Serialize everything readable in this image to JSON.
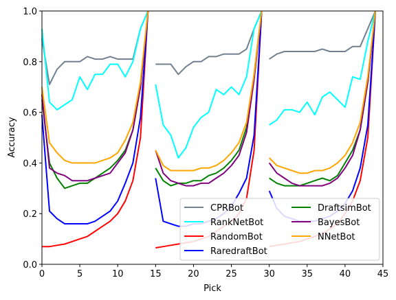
{
  "chart_data": {
    "type": "line",
    "title": "",
    "xlabel": "Pick",
    "ylabel": "Accuracy",
    "xlim": [
      0,
      45
    ],
    "ylim": [
      0.0,
      1.0
    ],
    "grid": false,
    "legend_position": "lower-right",
    "legend_columns": 2,
    "x_ticks": [
      0,
      5,
      10,
      15,
      20,
      25,
      30,
      35,
      40,
      45
    ],
    "y_ticks": [
      0.0,
      0.2,
      0.4,
      0.6,
      0.8,
      1.0
    ],
    "x_tick_labels": [
      "0",
      "5",
      "10",
      "15",
      "20",
      "25",
      "30",
      "35",
      "40",
      "45"
    ],
    "y_tick_labels": [
      "0.0",
      "0.2",
      "0.4",
      "0.6",
      "0.8",
      "1.0"
    ],
    "segments": [
      [
        0,
        14
      ],
      [
        15,
        29
      ],
      [
        30,
        44
      ]
    ],
    "series": [
      {
        "name": "CPRBot",
        "color": "#708090",
        "values": [
          0.89,
          0.71,
          0.77,
          0.8,
          0.8,
          0.8,
          0.82,
          0.81,
          0.81,
          0.82,
          0.81,
          0.81,
          0.81,
          0.93,
          1.0,
          0.79,
          0.79,
          0.79,
          0.75,
          0.78,
          0.8,
          0.8,
          0.82,
          0.82,
          0.83,
          0.83,
          0.83,
          0.85,
          0.93,
          1.0,
          0.81,
          0.83,
          0.84,
          0.84,
          0.84,
          0.84,
          0.84,
          0.85,
          0.84,
          0.84,
          0.84,
          0.86,
          0.86,
          0.93,
          1.0
        ]
      },
      {
        "name": "RankNetBot",
        "color": "#00ffff",
        "values": [
          0.93,
          0.64,
          0.61,
          0.63,
          0.65,
          0.74,
          0.69,
          0.75,
          0.75,
          0.79,
          0.79,
          0.74,
          0.8,
          0.93,
          1.0,
          0.71,
          0.55,
          0.51,
          0.42,
          0.46,
          0.54,
          0.58,
          0.6,
          0.69,
          0.67,
          0.7,
          0.67,
          0.74,
          0.93,
          1.0,
          0.55,
          0.57,
          0.61,
          0.61,
          0.6,
          0.64,
          0.59,
          0.66,
          0.68,
          0.65,
          0.62,
          0.74,
          0.73,
          0.88,
          1.0
        ]
      },
      {
        "name": "RandomBot",
        "color": "#ff0000",
        "values": [
          0.07,
          0.07,
          0.075,
          0.08,
          0.09,
          0.1,
          0.11,
          0.13,
          0.15,
          0.17,
          0.2,
          0.25,
          0.33,
          0.5,
          1.0,
          0.065,
          0.07,
          0.075,
          0.08,
          0.085,
          0.09,
          0.1,
          0.11,
          0.13,
          0.15,
          0.17,
          0.2,
          0.26,
          0.45,
          1.0,
          0.07,
          0.075,
          0.08,
          0.085,
          0.09,
          0.1,
          0.11,
          0.12,
          0.14,
          0.16,
          0.2,
          0.25,
          0.33,
          0.5,
          1.0
        ]
      },
      {
        "name": "RaredraftBot",
        "color": "#0000ff",
        "values": [
          0.59,
          0.21,
          0.18,
          0.16,
          0.16,
          0.16,
          0.16,
          0.17,
          0.19,
          0.21,
          0.25,
          0.32,
          0.4,
          0.58,
          1.0,
          0.34,
          0.17,
          0.16,
          0.15,
          0.15,
          0.16,
          0.16,
          0.17,
          0.18,
          0.2,
          0.23,
          0.28,
          0.34,
          0.51,
          1.0,
          0.29,
          0.22,
          0.19,
          0.18,
          0.17,
          0.17,
          0.17,
          0.18,
          0.19,
          0.21,
          0.24,
          0.29,
          0.38,
          0.55,
          1.0
        ]
      },
      {
        "name": "DraftsimBot",
        "color": "#008000",
        "values": [
          0.65,
          0.4,
          0.34,
          0.3,
          0.31,
          0.32,
          0.32,
          0.34,
          0.36,
          0.38,
          0.41,
          0.45,
          0.53,
          0.7,
          1.0,
          0.38,
          0.33,
          0.31,
          0.32,
          0.32,
          0.33,
          0.33,
          0.35,
          0.36,
          0.38,
          0.41,
          0.45,
          0.54,
          0.75,
          1.0,
          0.34,
          0.32,
          0.31,
          0.31,
          0.31,
          0.32,
          0.33,
          0.34,
          0.33,
          0.35,
          0.4,
          0.45,
          0.53,
          0.72,
          1.0
        ]
      },
      {
        "name": "BayesBot",
        "color": "#800080",
        "values": [
          0.67,
          0.38,
          0.36,
          0.35,
          0.33,
          0.33,
          0.33,
          0.34,
          0.35,
          0.36,
          0.4,
          0.44,
          0.53,
          0.7,
          1.0,
          0.45,
          0.36,
          0.33,
          0.32,
          0.31,
          0.31,
          0.32,
          0.32,
          0.34,
          0.36,
          0.39,
          0.43,
          0.52,
          0.73,
          1.0,
          0.4,
          0.36,
          0.34,
          0.32,
          0.31,
          0.31,
          0.31,
          0.31,
          0.32,
          0.34,
          0.38,
          0.43,
          0.53,
          0.72,
          1.0
        ]
      },
      {
        "name": "NNetBot",
        "color": "#ffa500",
        "values": [
          0.7,
          0.48,
          0.44,
          0.41,
          0.4,
          0.4,
          0.4,
          0.4,
          0.41,
          0.42,
          0.44,
          0.49,
          0.56,
          0.72,
          1.0,
          0.45,
          0.39,
          0.37,
          0.37,
          0.37,
          0.37,
          0.38,
          0.38,
          0.39,
          0.41,
          0.44,
          0.48,
          0.56,
          0.75,
          1.0,
          0.42,
          0.39,
          0.38,
          0.37,
          0.36,
          0.36,
          0.37,
          0.37,
          0.38,
          0.4,
          0.43,
          0.48,
          0.56,
          0.74,
          1.0
        ]
      }
    ]
  }
}
